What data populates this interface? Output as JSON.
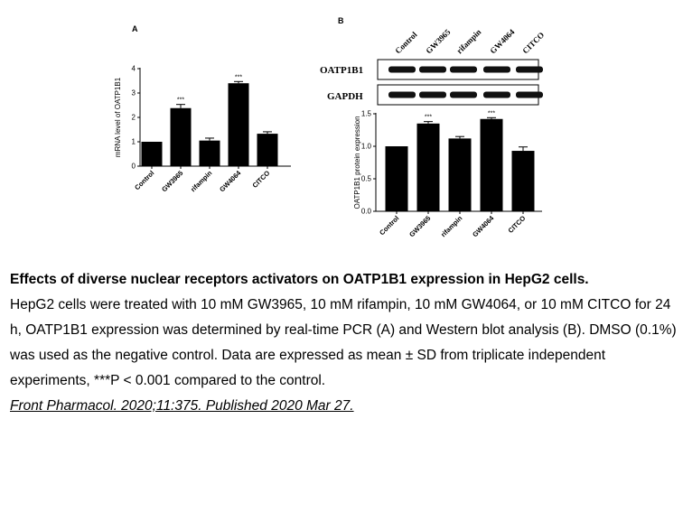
{
  "panels": [
    {
      "label": "A",
      "chart_data": {
        "type": "bar",
        "categories": [
          "Control",
          "GW3965",
          "rifampin",
          "GW4064",
          "CITCO"
        ],
        "values": [
          1.0,
          2.38,
          1.05,
          3.4,
          1.33
        ],
        "errors": [
          0.0,
          0.15,
          0.1,
          0.07,
          0.08
        ],
        "significance": [
          "",
          "***",
          "",
          "***",
          ""
        ],
        "ylabel": "mRNA level of OATP1B1",
        "yticks": [
          0,
          1,
          2,
          3,
          4
        ],
        "ylim": [
          0,
          4
        ],
        "grid": false
      }
    },
    {
      "label": "B",
      "blot": {
        "lane_labels": [
          "Control",
          "GW3965",
          "rifampin",
          "GW4064",
          "CITCO"
        ],
        "rows": [
          "OATP1B1",
          "GAPDH"
        ]
      },
      "chart_data": {
        "type": "bar",
        "categories": [
          "Control",
          "GW3965",
          "rifampin",
          "GW4064",
          "CITCO"
        ],
        "values": [
          1.0,
          1.35,
          1.12,
          1.42,
          0.93
        ],
        "errors": [
          0.0,
          0.03,
          0.03,
          0.02,
          0.06
        ],
        "significance": [
          "",
          "***",
          "",
          "***",
          ""
        ],
        "ylabel": "OATP1B1 protein expression",
        "yticks": [
          0.0,
          0.5,
          1.0,
          1.5
        ],
        "ylim": [
          0,
          1.5
        ],
        "grid": false
      }
    }
  ],
  "caption": {
    "title": "Effects of diverse nuclear receptors activators on OATP1B1 expression in HepG2 cells.",
    "body": "HepG2 cells were treated with 10 mM GW3965, 10 mM rifampin, 10 mM GW4064, or 10 mM CITCO for 24 h, OATP1B1 expression was determined by real-time PCR (A) and Western blot analysis (B). DMSO (0.1%) was used as the negative control. Data are expressed as mean ± SD from triplicate independent experiments, ***P < 0.001 compared to the control.",
    "citation": "Front Pharmacol. 2020;11:375. Published 2020 Mar 27."
  }
}
